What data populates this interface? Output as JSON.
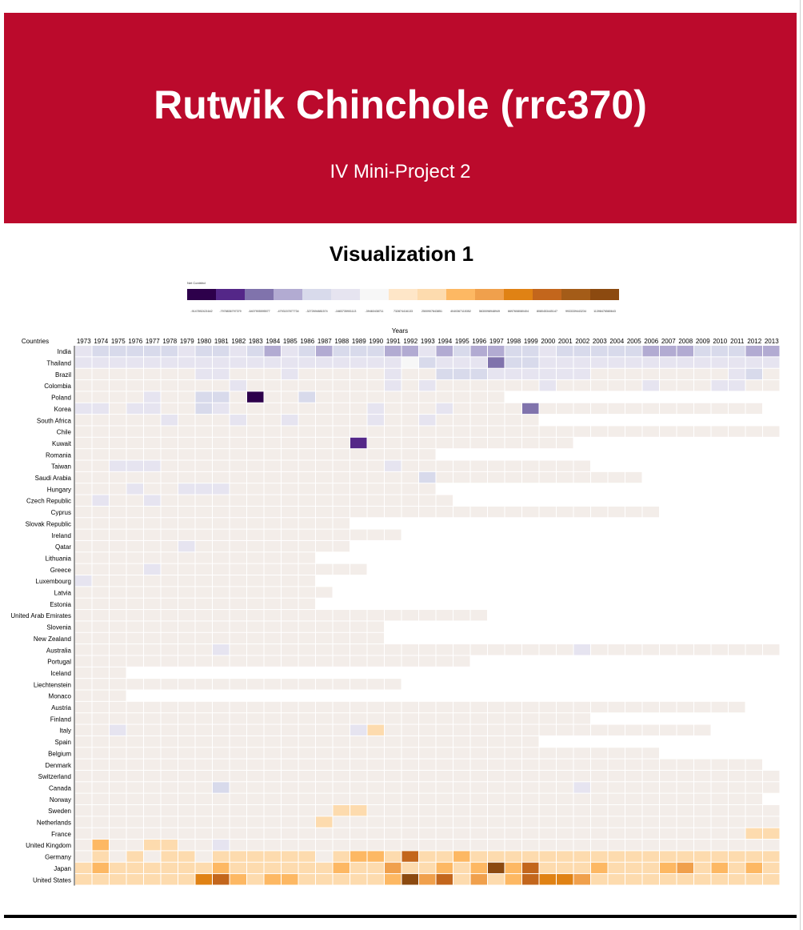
{
  "header": {
    "title": "Rutwik Chinchole (rrc370)",
    "subtitle": "IV Mini-Project 2",
    "background_color": "#bb0a2c"
  },
  "section_title": "Visualization 1",
  "chart_data": {
    "type": "heatmap",
    "title": "",
    "legend_title": "Net Contrbtd",
    "legend_labels": [
      "-9147892421642",
      "-7978836797379",
      "-6407905595577",
      "-4793157877734",
      "-3272694881574",
      "-1683735901113",
      "-39460438711",
      "732874416133",
      "2500907843851",
      "4040367115352",
      "5630098948949",
      "6697608080404",
      "8080453445147",
      "9933339443234",
      "11398476580643"
    ],
    "legend_colors": [
      "#2d004b",
      "#542788",
      "#8073ac",
      "#b2abd2",
      "#d8daeb",
      "#e6e4f0",
      "#f7f7f7",
      "#fee6c8",
      "#fddbae",
      "#fdb863",
      "#f0a04c",
      "#e08214",
      "#c3661c",
      "#a45c18",
      "#8c4a10"
    ],
    "xlabel": "Years",
    "ylabel": "Countries",
    "x_categories": [
      "1973",
      "1974",
      "1975",
      "1976",
      "1977",
      "1978",
      "1979",
      "1980",
      "1981",
      "1982",
      "1983",
      "1984",
      "1985",
      "1986",
      "1987",
      "1988",
      "1989",
      "1990",
      "1991",
      "1992",
      "1993",
      "1994",
      "1995",
      "1996",
      "1997",
      "1998",
      "1999",
      "2000",
      "2001",
      "2002",
      "2003",
      "2004",
      "2005",
      "2006",
      "2007",
      "2008",
      "2009",
      "2010",
      "2011",
      "2012",
      "2013"
    ],
    "y_categories": [
      "India",
      "Thailand",
      "Brazil",
      "Colombia",
      "Poland",
      "Korea",
      "South Africa",
      "Chile",
      "Kuwait",
      "Romania",
      "Taiwan",
      "Saudi Arabia",
      "Hungary",
      "Czech Republic",
      "Cyprus",
      "Slovak Republic",
      "Ireland",
      "Qatar",
      "Lithuania",
      "Greece",
      "Luxembourg",
      "Latvia",
      "Estonia",
      "United Arab Emirates",
      "Slovenia",
      "New Zealand",
      "Australia",
      "Portugal",
      "Iceland",
      "Liechtenstein",
      "Monaco",
      "Austria",
      "Finland",
      "Italy",
      "Spain",
      "Belgium",
      "Denmark",
      "Switzerland",
      "Canada",
      "Norway",
      "Sweden",
      "Netherlands",
      "France",
      "United Kingdom",
      "Germany",
      "Japan",
      "United States"
    ],
    "row_end_year": {
      "India": "2013",
      "Thailand": "2013",
      "Brazil": "2013",
      "Colombia": "2013",
      "Poland": "1997",
      "Korea": "2012",
      "South Africa": "1999",
      "Chile": "2013",
      "Kuwait": "2001",
      "Romania": "1993",
      "Taiwan": "2002",
      "Saudi Arabia": "2005",
      "Hungary": "1993",
      "Czech Republic": "1994",
      "Cyprus": "2006",
      "Slovak Republic": "1988",
      "Ireland": "1991",
      "Qatar": "1988",
      "Lithuania": "1986",
      "Greece": "1989",
      "Luxembourg": "1986",
      "Latvia": "1987",
      "Estonia": "1986",
      "United Arab Emirates": "1996",
      "Slovenia": "1990",
      "New Zealand": "1990",
      "Australia": "2013",
      "Portugal": "1995",
      "Iceland": "1975",
      "Liechtenstein": "1991",
      "Monaco": "1975",
      "Austria": "2011",
      "Finland": "2002",
      "Italy": "2009",
      "Spain": "1999",
      "Belgium": "2006",
      "Denmark": "2012",
      "Switzerland": "2013",
      "Canada": "2013",
      "Norway": "2012",
      "Sweden": "2013",
      "Netherlands": "2013",
      "France": "2013",
      "United Kingdom": "2013",
      "Germany": "2013",
      "Japan": "2013",
      "United States": "2013"
    },
    "default_level": 7,
    "nonempty_levels": {
      "India": {
        "1973": 5,
        "1974": 4,
        "1975": 4,
        "1976": 4,
        "1977": 4,
        "1978": 4,
        "1979": 5,
        "1980": 4,
        "1981": 4,
        "1982": 5,
        "1983": 4,
        "1984": 3,
        "1985": 5,
        "1986": 4,
        "1987": 3,
        "1988": 4,
        "1989": 4,
        "1990": 4,
        "1991": 3,
        "1992": 3,
        "1993": 5,
        "1994": 3,
        "1995": 4,
        "1996": 3,
        "1997": 3,
        "1998": 4,
        "1999": 4,
        "2000": 5,
        "2001": 4,
        "2002": 4,
        "2003": 4,
        "2004": 4,
        "2005": 4,
        "2006": 3,
        "2007": 3,
        "2008": 3,
        "2009": 4,
        "2010": 4,
        "2011": 4,
        "2012": 3,
        "2013": 3
      },
      "Thailand": {
        "1973": 5,
        "1974": 5,
        "1975": 5,
        "1976": 5,
        "1977": 5,
        "1978": 5,
        "1979": 5,
        "1980": 5,
        "1981": 5,
        "1982": 5,
        "1983": 5,
        "1984": 5,
        "1985": 5,
        "1986": 5,
        "1987": 5,
        "1988": 5,
        "1989": 5,
        "1990": 5,
        "1991": 5,
        "1992": 6,
        "1993": 4,
        "1994": 5,
        "1995": 5,
        "1996": 5,
        "1997": 2,
        "1998": 4,
        "1999": 4,
        "2000": 5,
        "2001": 5,
        "2002": 5,
        "2003": 5,
        "2004": 5,
        "2005": 5,
        "2006": 5,
        "2007": 5,
        "2008": 5,
        "2009": 5,
        "2010": 5,
        "2011": 5,
        "2012": 5,
        "2013": 5
      },
      "Brazil": {
        "1980": 5,
        "1981": 5,
        "1985": 5,
        "1991": 5,
        "1994": 4,
        "1995": 4,
        "1996": 4,
        "1997": 5,
        "1998": 5,
        "1999": 5,
        "2000": 5,
        "2001": 5,
        "2002": 5,
        "2011": 5,
        "2012": 4
      },
      "Colombia": {
        "1982": 5,
        "1991": 5,
        "1993": 5,
        "2000": 5,
        "2006": 5,
        "2010": 5,
        "2011": 5
      },
      "Poland": {
        "1977": 5,
        "1980": 4,
        "1981": 4,
        "1983": 0,
        "1986": 4
      },
      "Korea": {
        "1973": 5,
        "1974": 5,
        "1976": 5,
        "1977": 5,
        "1980": 4,
        "1981": 5,
        "1990": 5,
        "1994": 5,
        "1999": 2
      },
      "South Africa": {
        "1978": 5,
        "1982": 5,
        "1985": 5,
        "1990": 5,
        "1993": 5
      },
      "Kuwait": {
        "1989": 1
      },
      "Taiwan": {
        "1975": 5,
        "1976": 5,
        "1977": 5,
        "1991": 5
      },
      "Saudi Arabia": {
        "1993": 4
      },
      "Hungary": {
        "1976": 5,
        "1979": 5,
        "1980": 5,
        "1981": 5
      },
      "Czech Republic": {
        "1974": 5,
        "1977": 5
      },
      "Qatar": {
        "1979": 5
      },
      "Greece": {
        "1977": 5
      },
      "Luxembourg": {
        "1973": 5
      },
      "Australia": {
        "1981": 5,
        "2002": 5
      },
      "Italy": {
        "1975": 5,
        "1989": 5,
        "1990": 8
      },
      "Canada": {
        "1981": 4,
        "2002": 5
      },
      "United Kingdom": {
        "1974": 9,
        "1977": 8,
        "1978": 8,
        "1981": 5
      },
      "Germany": {
        "1974": 8,
        "1976": 8,
        "1978": 8,
        "1979": 8,
        "1981": 8,
        "1982": 8,
        "1983": 8,
        "1984": 8,
        "1985": 8,
        "1986": 8,
        "1988": 8,
        "1989": 9,
        "1990": 9,
        "1991": 8,
        "1992": 12,
        "1993": 8,
        "1994": 8,
        "1995": 9,
        "1996": 8,
        "1997": 8,
        "1998": 8,
        "1999": 8,
        "2000": 8,
        "2001": 8,
        "2002": 8,
        "2003": 8,
        "2004": 8,
        "2005": 8,
        "2006": 8,
        "2007": 8,
        "2008": 8,
        "2009": 8,
        "2010": 8,
        "2011": 8,
        "2012": 8,
        "2013": 8
      },
      "Japan": {
        "1973": 8,
        "1974": 9,
        "1975": 8,
        "1976": 8,
        "1977": 8,
        "1978": 8,
        "1979": 8,
        "1980": 8,
        "1981": 9,
        "1982": 8,
        "1983": 8,
        "1984": 8,
        "1985": 8,
        "1986": 8,
        "1987": 8,
        "1988": 9,
        "1989": 8,
        "1990": 8,
        "1991": 10,
        "1992": 8,
        "1993": 8,
        "1994": 9,
        "1995": 8,
        "1996": 9,
        "1997": 14,
        "1998": 9,
        "1999": 12,
        "2000": 8,
        "2001": 8,
        "2002": 8,
        "2003": 9,
        "2004": 8,
        "2005": 8,
        "2006": 8,
        "2007": 9,
        "2008": 10,
        "2009": 8,
        "2010": 9,
        "2011": 8,
        "2012": 9,
        "2013": 8
      },
      "United States": {
        "1973": 8,
        "1974": 8,
        "1975": 8,
        "1976": 8,
        "1977": 8,
        "1978": 8,
        "1979": 8,
        "1980": 11,
        "1981": 12,
        "1982": 9,
        "1983": 8,
        "1984": 9,
        "1985": 9,
        "1986": 8,
        "1987": 8,
        "1988": 8,
        "1989": 8,
        "1990": 8,
        "1991": 9,
        "1992": 14,
        "1993": 10,
        "1994": 12,
        "1995": 8,
        "1996": 10,
        "1997": 8,
        "1998": 9,
        "1999": 12,
        "2000": 11,
        "2001": 11,
        "2002": 10,
        "2003": 8,
        "2004": 8,
        "2005": 8,
        "2006": 8,
        "2007": 8,
        "2008": 8,
        "2009": 8,
        "2010": 8,
        "2011": 8,
        "2012": 8,
        "2013": 8
      },
      "France": {
        "2012": 8,
        "2013": 8
      },
      "Sweden": {
        "1988": 8,
        "1989": 8
      },
      "Netherlands": {
        "1987": 8
      }
    },
    "grid": true,
    "legend_position": "top-left"
  }
}
